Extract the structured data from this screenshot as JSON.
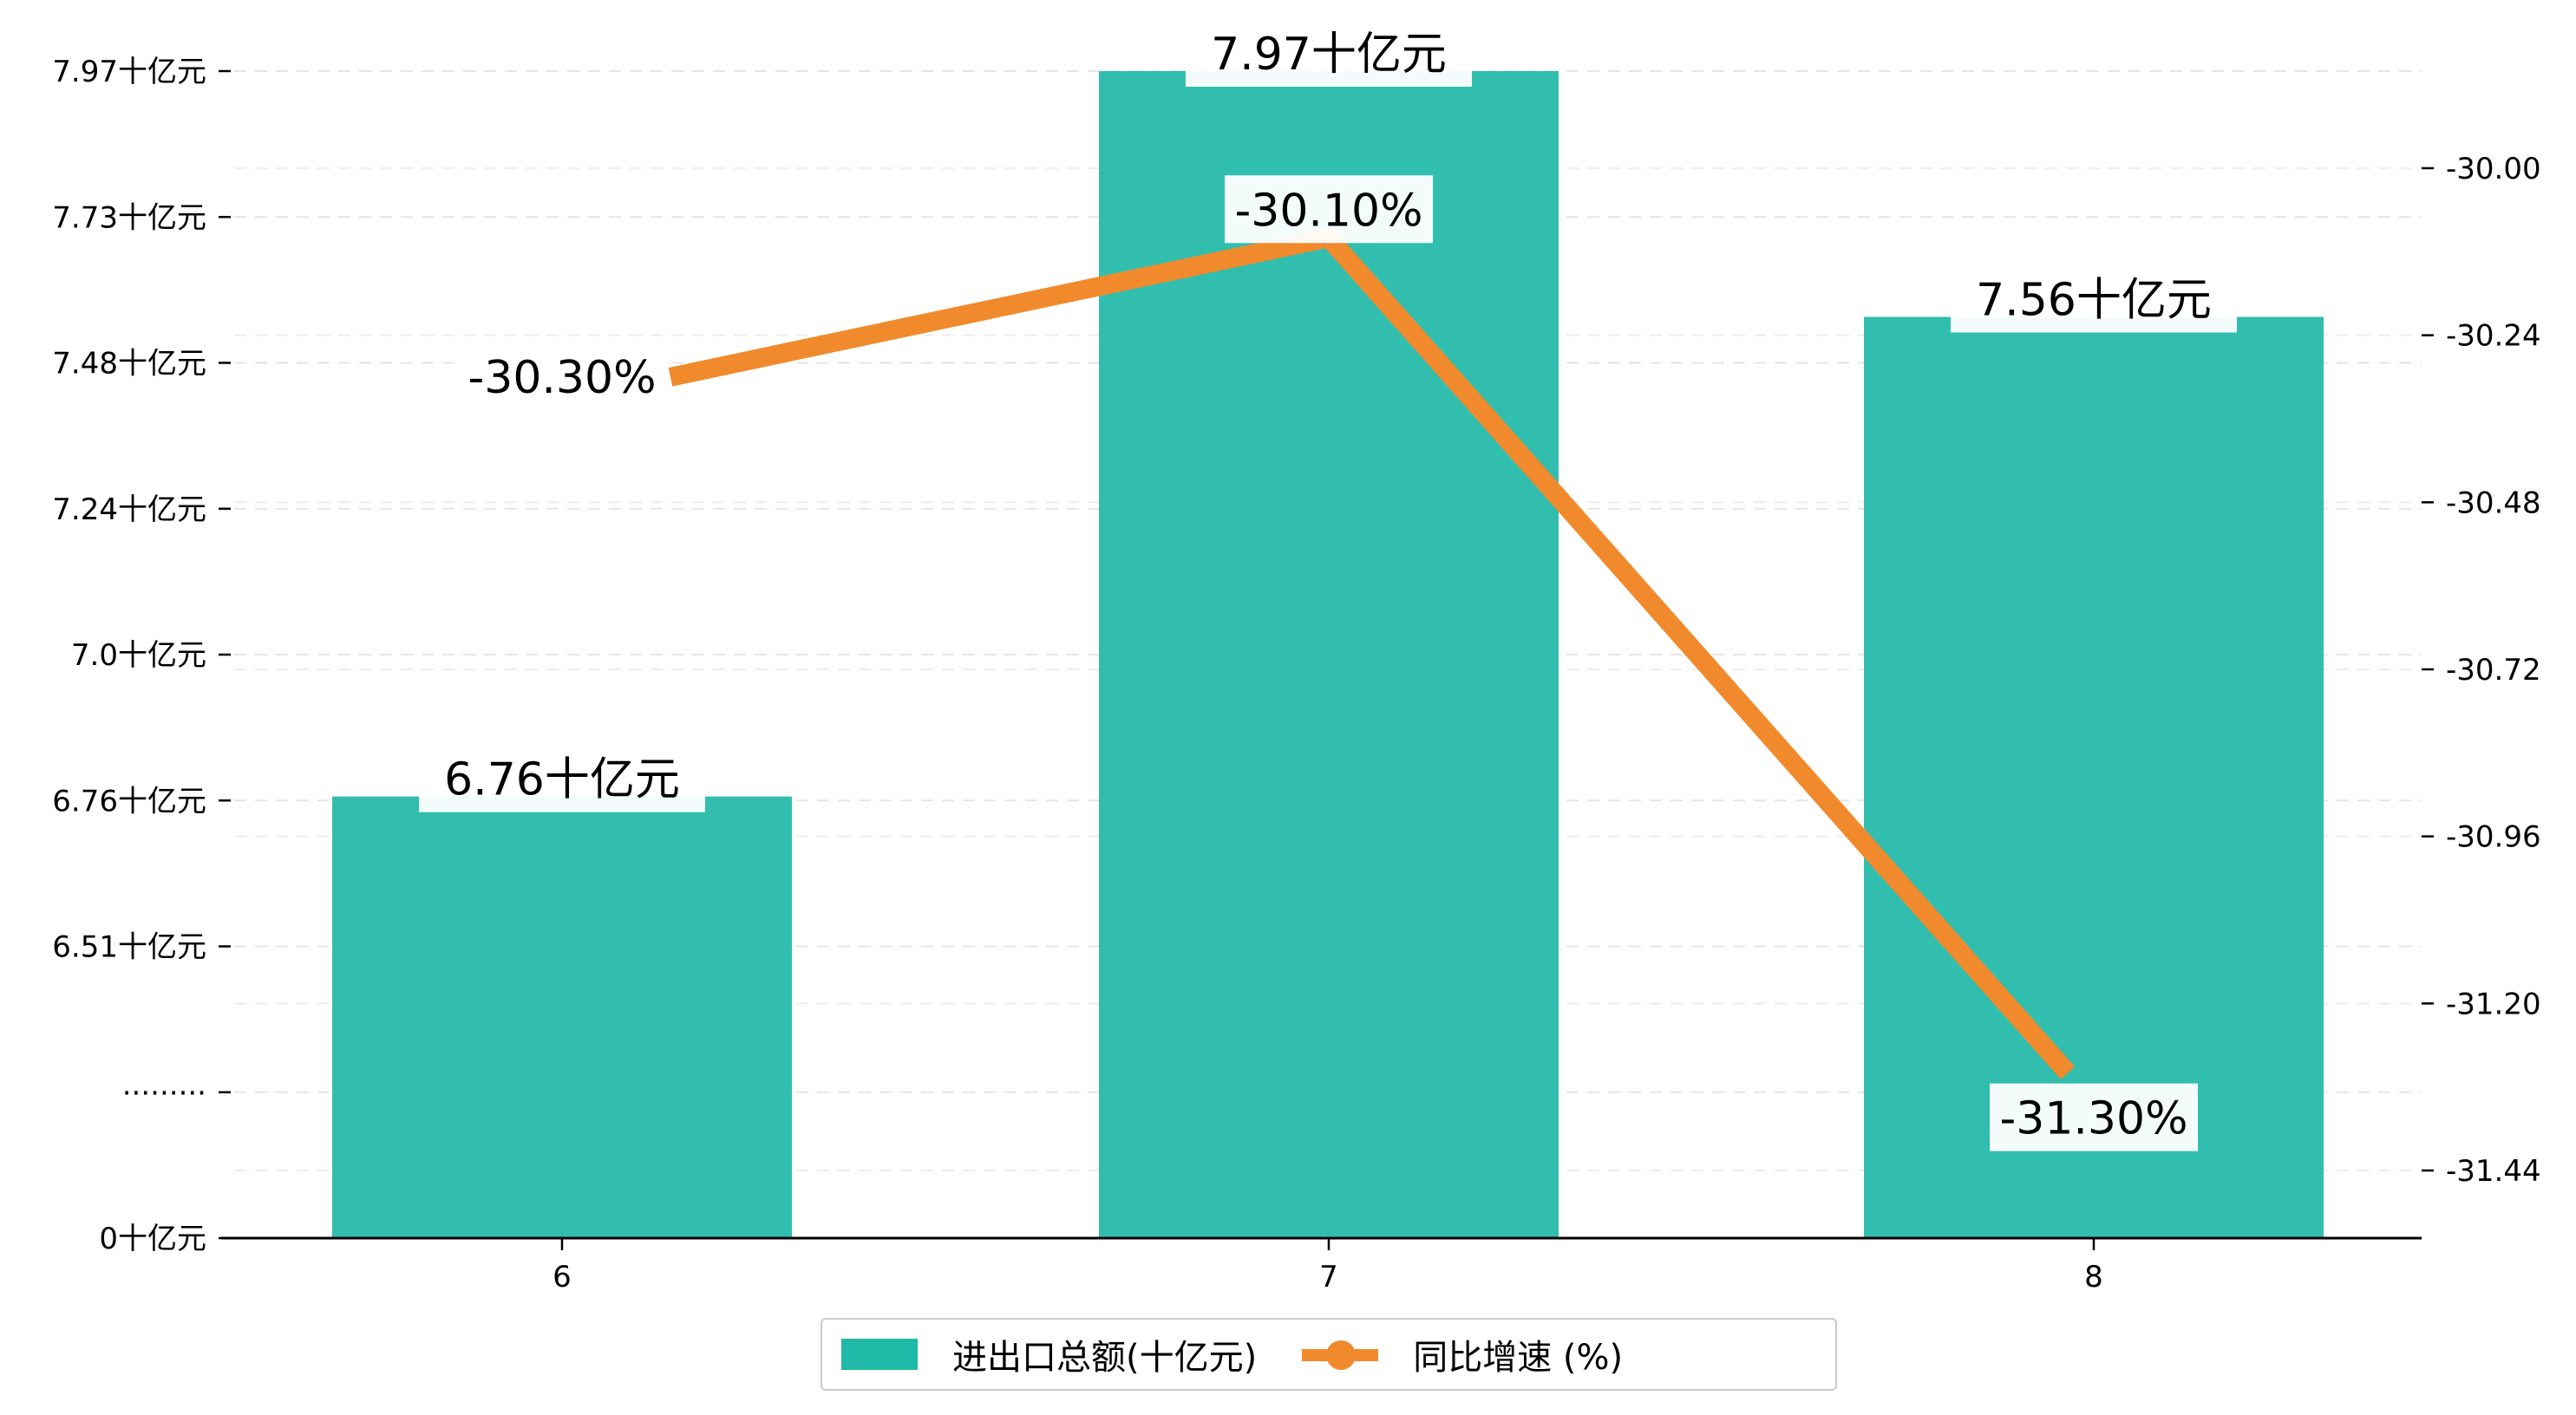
{
  "chart_data": {
    "type": "bar",
    "categories": [
      "6",
      "7",
      "8"
    ],
    "series": [
      {
        "name": "进出口总额(十亿元)",
        "type": "bar",
        "axis": "left",
        "values": [
          6.76,
          7.97,
          7.56
        ],
        "labels": [
          "6.76十亿元",
          "7.97十亿元",
          "7.56十亿元"
        ],
        "color": "#20b9a8"
      },
      {
        "name": "同比增速 (%)",
        "type": "line",
        "axis": "right",
        "values": [
          -30.3,
          -30.1,
          -31.3
        ],
        "labels": [
          "-30.30%",
          "-30.10%",
          "-31.30%"
        ],
        "color": "#f08a2c"
      }
    ],
    "left_axis": {
      "broken": true,
      "ticks": [
        {
          "value": 0,
          "label": "0十亿元"
        },
        {
          "value": null,
          "label": "·········"
        },
        {
          "value": 6.51,
          "label": "6.51十亿元"
        },
        {
          "value": 6.76,
          "label": "6.76十亿元"
        },
        {
          "value": 7.0,
          "label": "7.0十亿元"
        },
        {
          "value": 7.24,
          "label": "7.24十亿元"
        },
        {
          "value": 7.48,
          "label": "7.48十亿元"
        },
        {
          "value": 7.73,
          "label": "7.73十亿元"
        },
        {
          "value": 7.97,
          "label": "7.97十亿元"
        }
      ]
    },
    "right_axis": {
      "ylim": [
        -31.55,
        -29.84
      ],
      "ticks": [
        {
          "value": -30.0,
          "label": "-30.00"
        },
        {
          "value": -30.24,
          "label": "-30.24"
        },
        {
          "value": -30.48,
          "label": "-30.48"
        },
        {
          "value": -30.72,
          "label": "-30.72"
        },
        {
          "value": -30.96,
          "label": "-30.96"
        },
        {
          "value": -31.2,
          "label": "-31.20"
        },
        {
          "value": -31.44,
          "label": "-31.44"
        }
      ]
    },
    "grid": true,
    "legend_position": "bottom-center"
  }
}
